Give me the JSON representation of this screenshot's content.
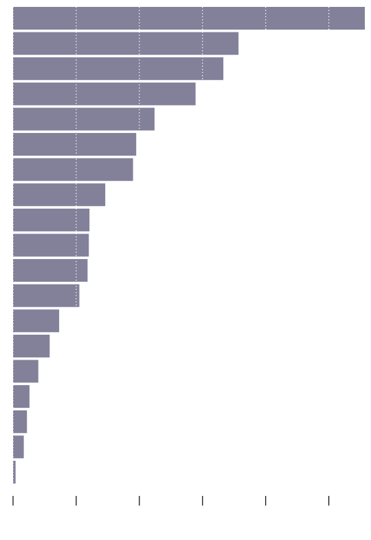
{
  "chart_data": {
    "type": "hbar",
    "orientation": "horizontal",
    "categories": [
      null,
      null,
      null,
      null,
      null,
      null,
      null,
      null,
      null,
      null,
      null,
      null,
      null,
      null,
      null,
      null,
      null,
      null,
      null
    ],
    "values": [
      5.57,
      3.57,
      3.33,
      2.89,
      2.24,
      1.95,
      1.9,
      1.46,
      1.21,
      1.2,
      1.18,
      1.05,
      0.73,
      0.58,
      0.4,
      0.26,
      0.22,
      0.17,
      0.04
    ],
    "color": "#83809a",
    "xlim": [
      0,
      5.57
    ],
    "xticks": [
      0,
      1,
      2,
      3,
      4,
      5
    ],
    "grid": true
  }
}
